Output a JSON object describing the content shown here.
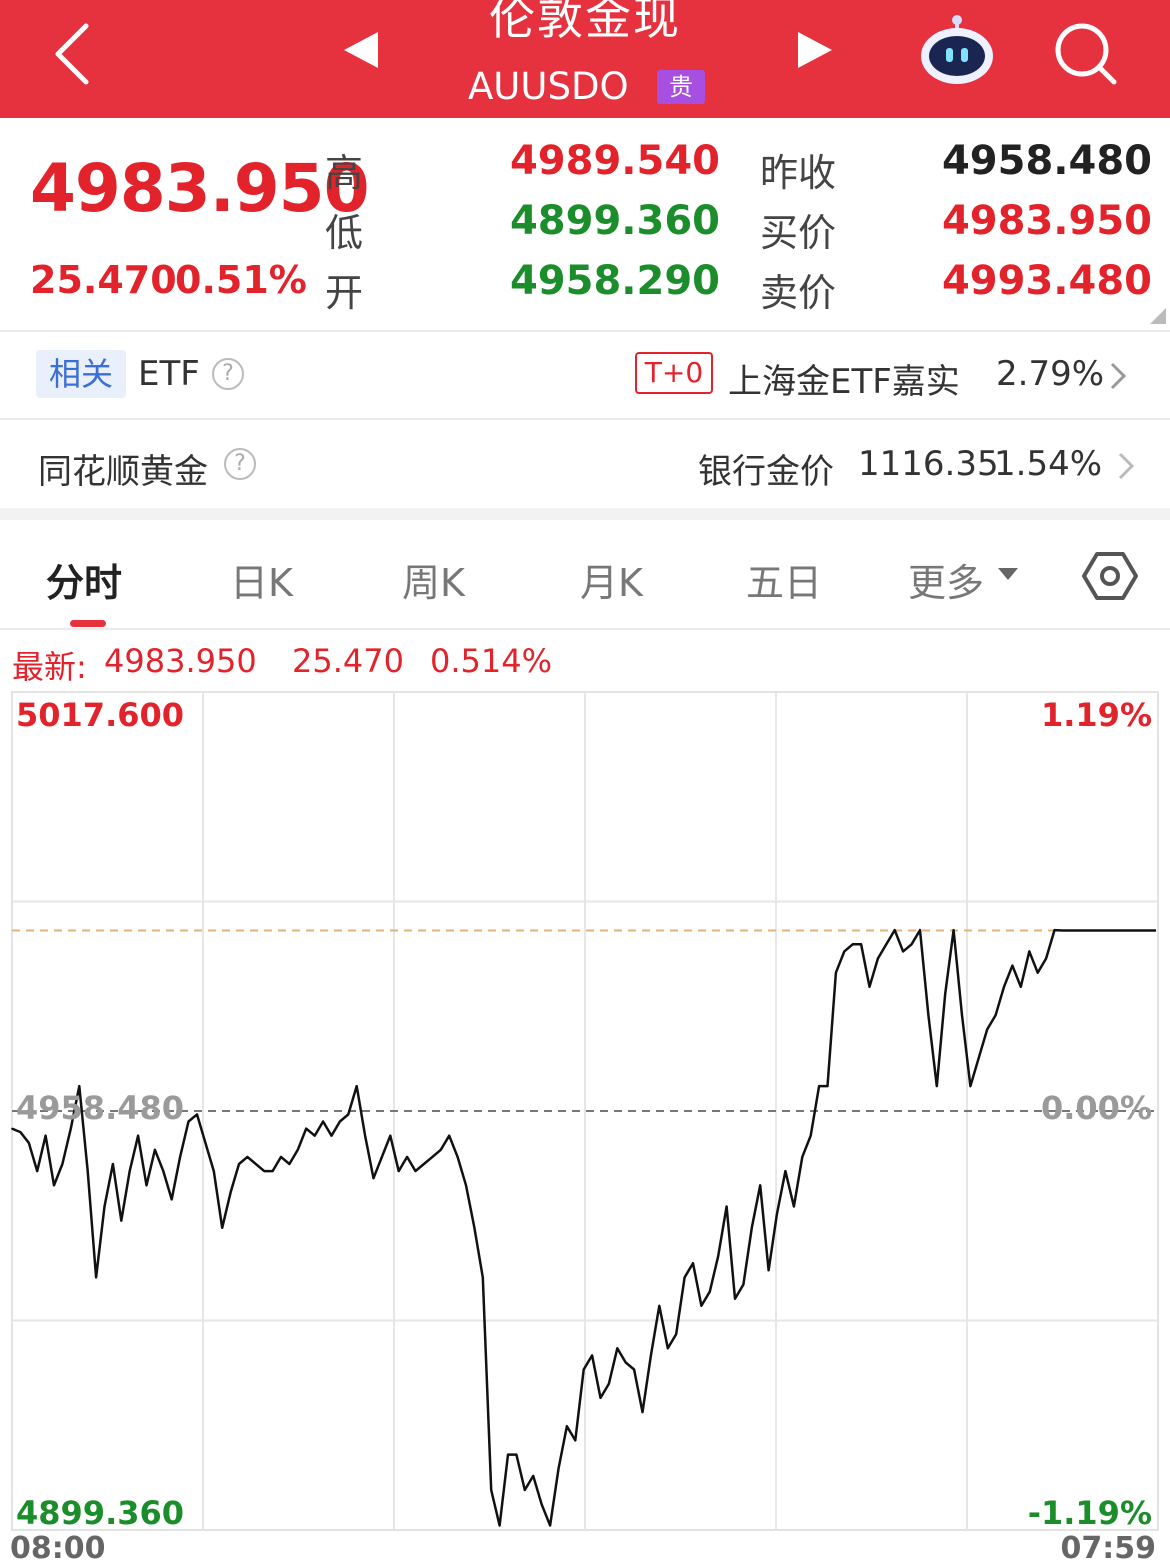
{
  "header": {
    "back_icon": "chevron-left-icon",
    "prev_icon": "triangle-left-icon",
    "next_icon": "triangle-right-icon",
    "title": "伦敦金现",
    "code": "AUUSDO",
    "badge": "贵",
    "assistant_icon": "robot-icon",
    "search_icon": "search-icon"
  },
  "quote": {
    "last_price": "4983.950",
    "change": "25.470",
    "change_pct": "0.51%",
    "high_label": "高",
    "high": "4989.540",
    "low_label": "低",
    "low": "4899.360",
    "open_label": "开",
    "open": "4958.290",
    "prev_close_label": "昨收",
    "prev_close": "4958.480",
    "bid_label": "买价",
    "bid": "4983.950",
    "ask_label": "卖价",
    "ask": "4993.480"
  },
  "related": {
    "tag": "相关",
    "etf_label": "ETF",
    "etf_badge": "T+0",
    "etf_name": "上海金ETF嘉实",
    "etf_change": "2.79%"
  },
  "gold_row": {
    "label": "同花顺黄金",
    "bank_label": "银行金价",
    "bank_price": "1116.35",
    "bank_change": "1.54%"
  },
  "tabs": {
    "items": [
      "分时",
      "日K",
      "周K",
      "月K",
      "五日",
      "更多"
    ],
    "active": 0,
    "settings_icon": "hexagon-settings-icon"
  },
  "chart_info": {
    "latest_label": "最新:",
    "latest_price": "4983.950",
    "latest_change": "25.470",
    "latest_pct": "0.514%"
  },
  "colors": {
    "header_bg": "#e5323e",
    "up": "#e2232b",
    "down": "#1c8d2b",
    "badge_purple": "#a64fe0"
  },
  "chart_data": {
    "type": "line",
    "title": "",
    "xlabel": "",
    "ylabel": "",
    "x_start_label": "08:00",
    "x_end_label": "07:59",
    "ylim": [
      4899.36,
      5017.6
    ],
    "ylim_labels": [
      "4899.360",
      "5017.600"
    ],
    "prev_close": 4958.48,
    "prev_close_label": "4958.480",
    "pct_labels": [
      "1.19%",
      "0.00%",
      "-1.19%"
    ],
    "reference_line": 4983.95,
    "grid": true,
    "series": [
      {
        "values": [
          4956,
          4955.5,
          4954,
          4950,
          4955,
          4948,
          4951,
          4956,
          4962,
          4950,
          4935,
          4945,
          4951,
          4943,
          4950,
          4955,
          4948,
          4953,
          4950,
          4946,
          4952,
          4957,
          4958,
          4954,
          4950,
          4942,
          4947,
          4951,
          4952,
          4951,
          4950,
          4950,
          4952,
          4951,
          4953,
          4956,
          4955,
          4957,
          4955,
          4957,
          4958,
          4962,
          4955,
          4949,
          4952,
          4955,
          4950,
          4952,
          4950,
          4951,
          4952,
          4953,
          4955,
          4952,
          4948,
          4942,
          4935,
          4905,
          4900,
          4910,
          4910,
          4905,
          4907,
          4903,
          4900,
          4908,
          4914,
          4912,
          4922,
          4924,
          4918,
          4920,
          4925,
          4923,
          4922,
          4916,
          4924,
          4931,
          4925,
          4927,
          4935,
          4937,
          4931,
          4933,
          4938,
          4945,
          4932,
          4934,
          4942,
          4948,
          4936,
          4944,
          4950,
          4945,
          4952,
          4955,
          4962,
          4962,
          4978,
          4981,
          4982,
          4982,
          4976,
          4980,
          4982,
          4984,
          4981,
          4982,
          4984,
          4972,
          4962,
          4975,
          4984,
          4972,
          4962,
          4966,
          4970,
          4972,
          4976,
          4979,
          4976,
          4981,
          4978,
          4980,
          4984,
          4983.95
        ]
      }
    ]
  }
}
